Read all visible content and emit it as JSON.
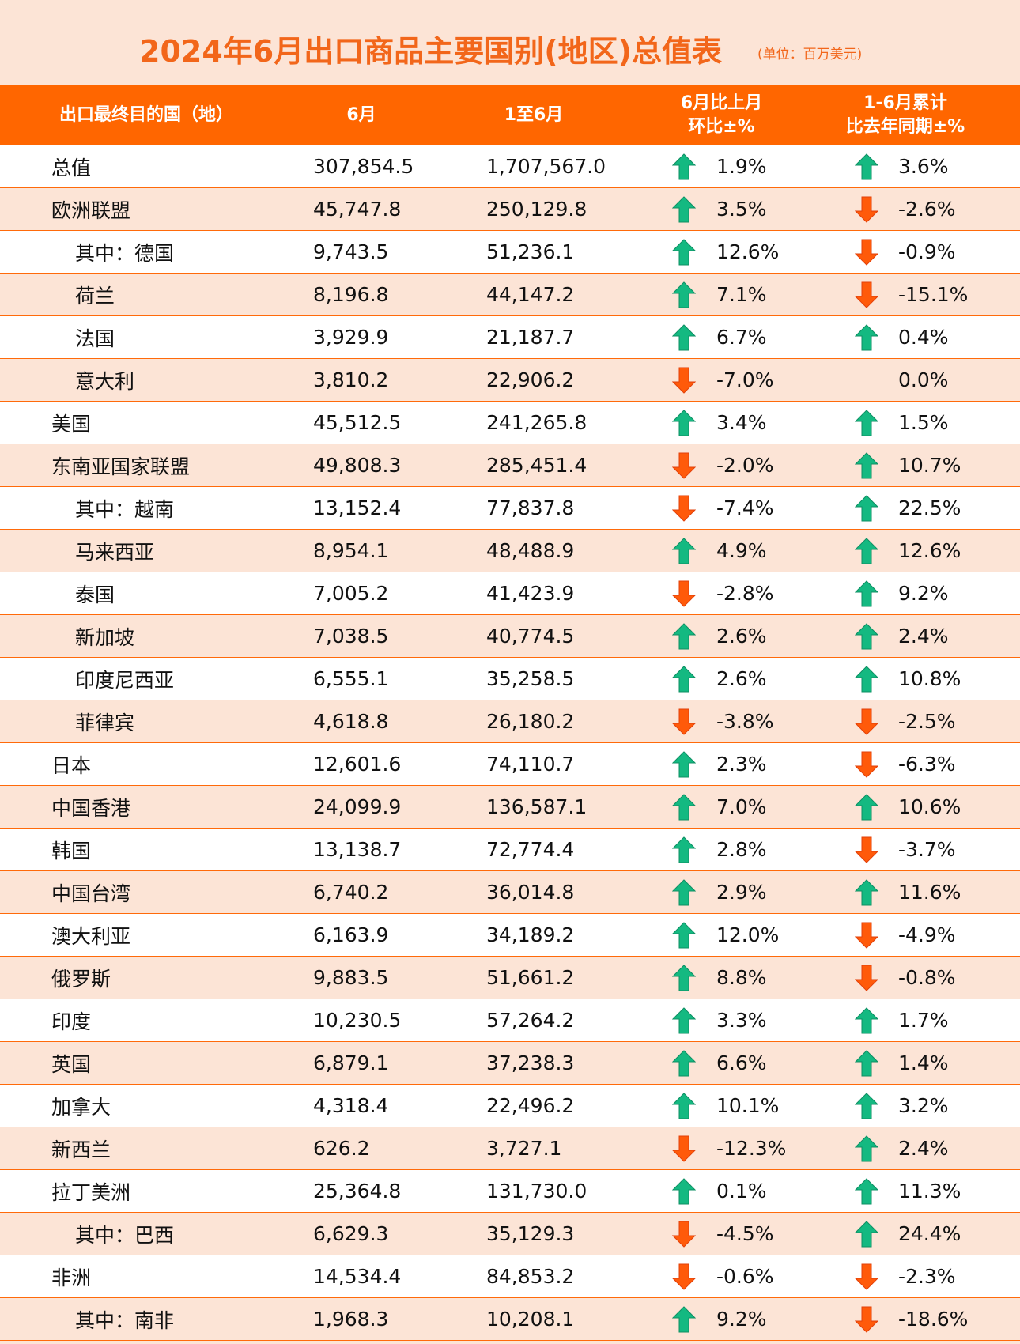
{
  "title": "2024年6月出口商品主要国别(地区)总值表",
  "unit": "(单位：百万美元)",
  "colors": {
    "header_bg": "#ff6600",
    "title": "#f2661a",
    "row_alt": "#fce4d6",
    "up": "#14b981",
    "down": "#ff5a0a"
  },
  "columns": [
    "出口最终目的国（地）",
    "6月",
    "1至6月",
    "6月比上月\n环比±%",
    "1-6月累计\n比去年同期±%"
  ],
  "rows": [
    {
      "name": "总值",
      "indent": false,
      "jun": "307,854.5",
      "ytd": "1,707,567.0",
      "mom": "1.9%",
      "mom_dir": "up",
      "yoy": "3.6%",
      "yoy_dir": "up"
    },
    {
      "name": "欧洲联盟",
      "indent": false,
      "jun": "45,747.8",
      "ytd": "250,129.8",
      "mom": "3.5%",
      "mom_dir": "up",
      "yoy": "-2.6%",
      "yoy_dir": "down"
    },
    {
      "name": "其中：德国",
      "indent": true,
      "jun": "9,743.5",
      "ytd": "51,236.1",
      "mom": "12.6%",
      "mom_dir": "up",
      "yoy": "-0.9%",
      "yoy_dir": "down"
    },
    {
      "name": "荷兰",
      "indent": true,
      "jun": "8,196.8",
      "ytd": "44,147.2",
      "mom": "7.1%",
      "mom_dir": "up",
      "yoy": "-15.1%",
      "yoy_dir": "down"
    },
    {
      "name": "法国",
      "indent": true,
      "jun": "3,929.9",
      "ytd": "21,187.7",
      "mom": "6.7%",
      "mom_dir": "up",
      "yoy": "0.4%",
      "yoy_dir": "up"
    },
    {
      "name": "意大利",
      "indent": true,
      "jun": "3,810.2",
      "ytd": "22,906.2",
      "mom": "-7.0%",
      "mom_dir": "down",
      "yoy": "0.0%",
      "yoy_dir": "none"
    },
    {
      "name": "美国",
      "indent": false,
      "jun": "45,512.5",
      "ytd": "241,265.8",
      "mom": "3.4%",
      "mom_dir": "up",
      "yoy": "1.5%",
      "yoy_dir": "up"
    },
    {
      "name": "东南亚国家联盟",
      "indent": false,
      "jun": "49,808.3",
      "ytd": "285,451.4",
      "mom": "-2.0%",
      "mom_dir": "down",
      "yoy": "10.7%",
      "yoy_dir": "up"
    },
    {
      "name": "其中：越南",
      "indent": true,
      "jun": "13,152.4",
      "ytd": "77,837.8",
      "mom": "-7.4%",
      "mom_dir": "down",
      "yoy": "22.5%",
      "yoy_dir": "up"
    },
    {
      "name": "马来西亚",
      "indent": true,
      "jun": "8,954.1",
      "ytd": "48,488.9",
      "mom": "4.9%",
      "mom_dir": "up",
      "yoy": "12.6%",
      "yoy_dir": "up"
    },
    {
      "name": "泰国",
      "indent": true,
      "jun": "7,005.2",
      "ytd": "41,423.9",
      "mom": "-2.8%",
      "mom_dir": "down",
      "yoy": "9.2%",
      "yoy_dir": "up"
    },
    {
      "name": "新加坡",
      "indent": true,
      "jun": "7,038.5",
      "ytd": "40,774.5",
      "mom": "2.6%",
      "mom_dir": "up",
      "yoy": "2.4%",
      "yoy_dir": "up"
    },
    {
      "name": "印度尼西亚",
      "indent": true,
      "jun": "6,555.1",
      "ytd": "35,258.5",
      "mom": "2.6%",
      "mom_dir": "up",
      "yoy": "10.8%",
      "yoy_dir": "up"
    },
    {
      "name": "菲律宾",
      "indent": true,
      "jun": "4,618.8",
      "ytd": "26,180.2",
      "mom": "-3.8%",
      "mom_dir": "down",
      "yoy": "-2.5%",
      "yoy_dir": "down"
    },
    {
      "name": "日本",
      "indent": false,
      "jun": "12,601.6",
      "ytd": "74,110.7",
      "mom": "2.3%",
      "mom_dir": "up",
      "yoy": "-6.3%",
      "yoy_dir": "down"
    },
    {
      "name": "中国香港",
      "indent": false,
      "jun": "24,099.9",
      "ytd": "136,587.1",
      "mom": "7.0%",
      "mom_dir": "up",
      "yoy": "10.6%",
      "yoy_dir": "up"
    },
    {
      "name": "韩国",
      "indent": false,
      "jun": "13,138.7",
      "ytd": "72,774.4",
      "mom": "2.8%",
      "mom_dir": "up",
      "yoy": "-3.7%",
      "yoy_dir": "down"
    },
    {
      "name": "中国台湾",
      "indent": false,
      "jun": "6,740.2",
      "ytd": "36,014.8",
      "mom": "2.9%",
      "mom_dir": "up",
      "yoy": "11.6%",
      "yoy_dir": "up"
    },
    {
      "name": "澳大利亚",
      "indent": false,
      "jun": "6,163.9",
      "ytd": "34,189.2",
      "mom": "12.0%",
      "mom_dir": "up",
      "yoy": "-4.9%",
      "yoy_dir": "down"
    },
    {
      "name": "俄罗斯",
      "indent": false,
      "jun": "9,883.5",
      "ytd": "51,661.2",
      "mom": "8.8%",
      "mom_dir": "up",
      "yoy": "-0.8%",
      "yoy_dir": "down"
    },
    {
      "name": "印度",
      "indent": false,
      "jun": "10,230.5",
      "ytd": "57,264.2",
      "mom": "3.3%",
      "mom_dir": "up",
      "yoy": "1.7%",
      "yoy_dir": "up"
    },
    {
      "name": "英国",
      "indent": false,
      "jun": "6,879.1",
      "ytd": "37,238.3",
      "mom": "6.6%",
      "mom_dir": "up",
      "yoy": "1.4%",
      "yoy_dir": "up"
    },
    {
      "name": "加拿大",
      "indent": false,
      "jun": "4,318.4",
      "ytd": "22,496.2",
      "mom": "10.1%",
      "mom_dir": "up",
      "yoy": "3.2%",
      "yoy_dir": "up"
    },
    {
      "name": "新西兰",
      "indent": false,
      "jun": "626.2",
      "ytd": "3,727.1",
      "mom": "-12.3%",
      "mom_dir": "down",
      "yoy": "2.4%",
      "yoy_dir": "up"
    },
    {
      "name": "拉丁美洲",
      "indent": false,
      "jun": "25,364.8",
      "ytd": "131,730.0",
      "mom": "0.1%",
      "mom_dir": "up",
      "yoy": "11.3%",
      "yoy_dir": "up"
    },
    {
      "name": "其中：巴西",
      "indent": true,
      "jun": "6,629.3",
      "ytd": "35,129.3",
      "mom": "-4.5%",
      "mom_dir": "down",
      "yoy": "24.4%",
      "yoy_dir": "up"
    },
    {
      "name": "非洲",
      "indent": false,
      "jun": "14,534.4",
      "ytd": "84,853.2",
      "mom": "-0.6%",
      "mom_dir": "down",
      "yoy": "-2.3%",
      "yoy_dir": "down"
    },
    {
      "name": "其中：南非",
      "indent": true,
      "jun": "1,968.3",
      "ytd": "10,208.1",
      "mom": "9.2%",
      "mom_dir": "up",
      "yoy": "-18.6%",
      "yoy_dir": "down"
    }
  ]
}
